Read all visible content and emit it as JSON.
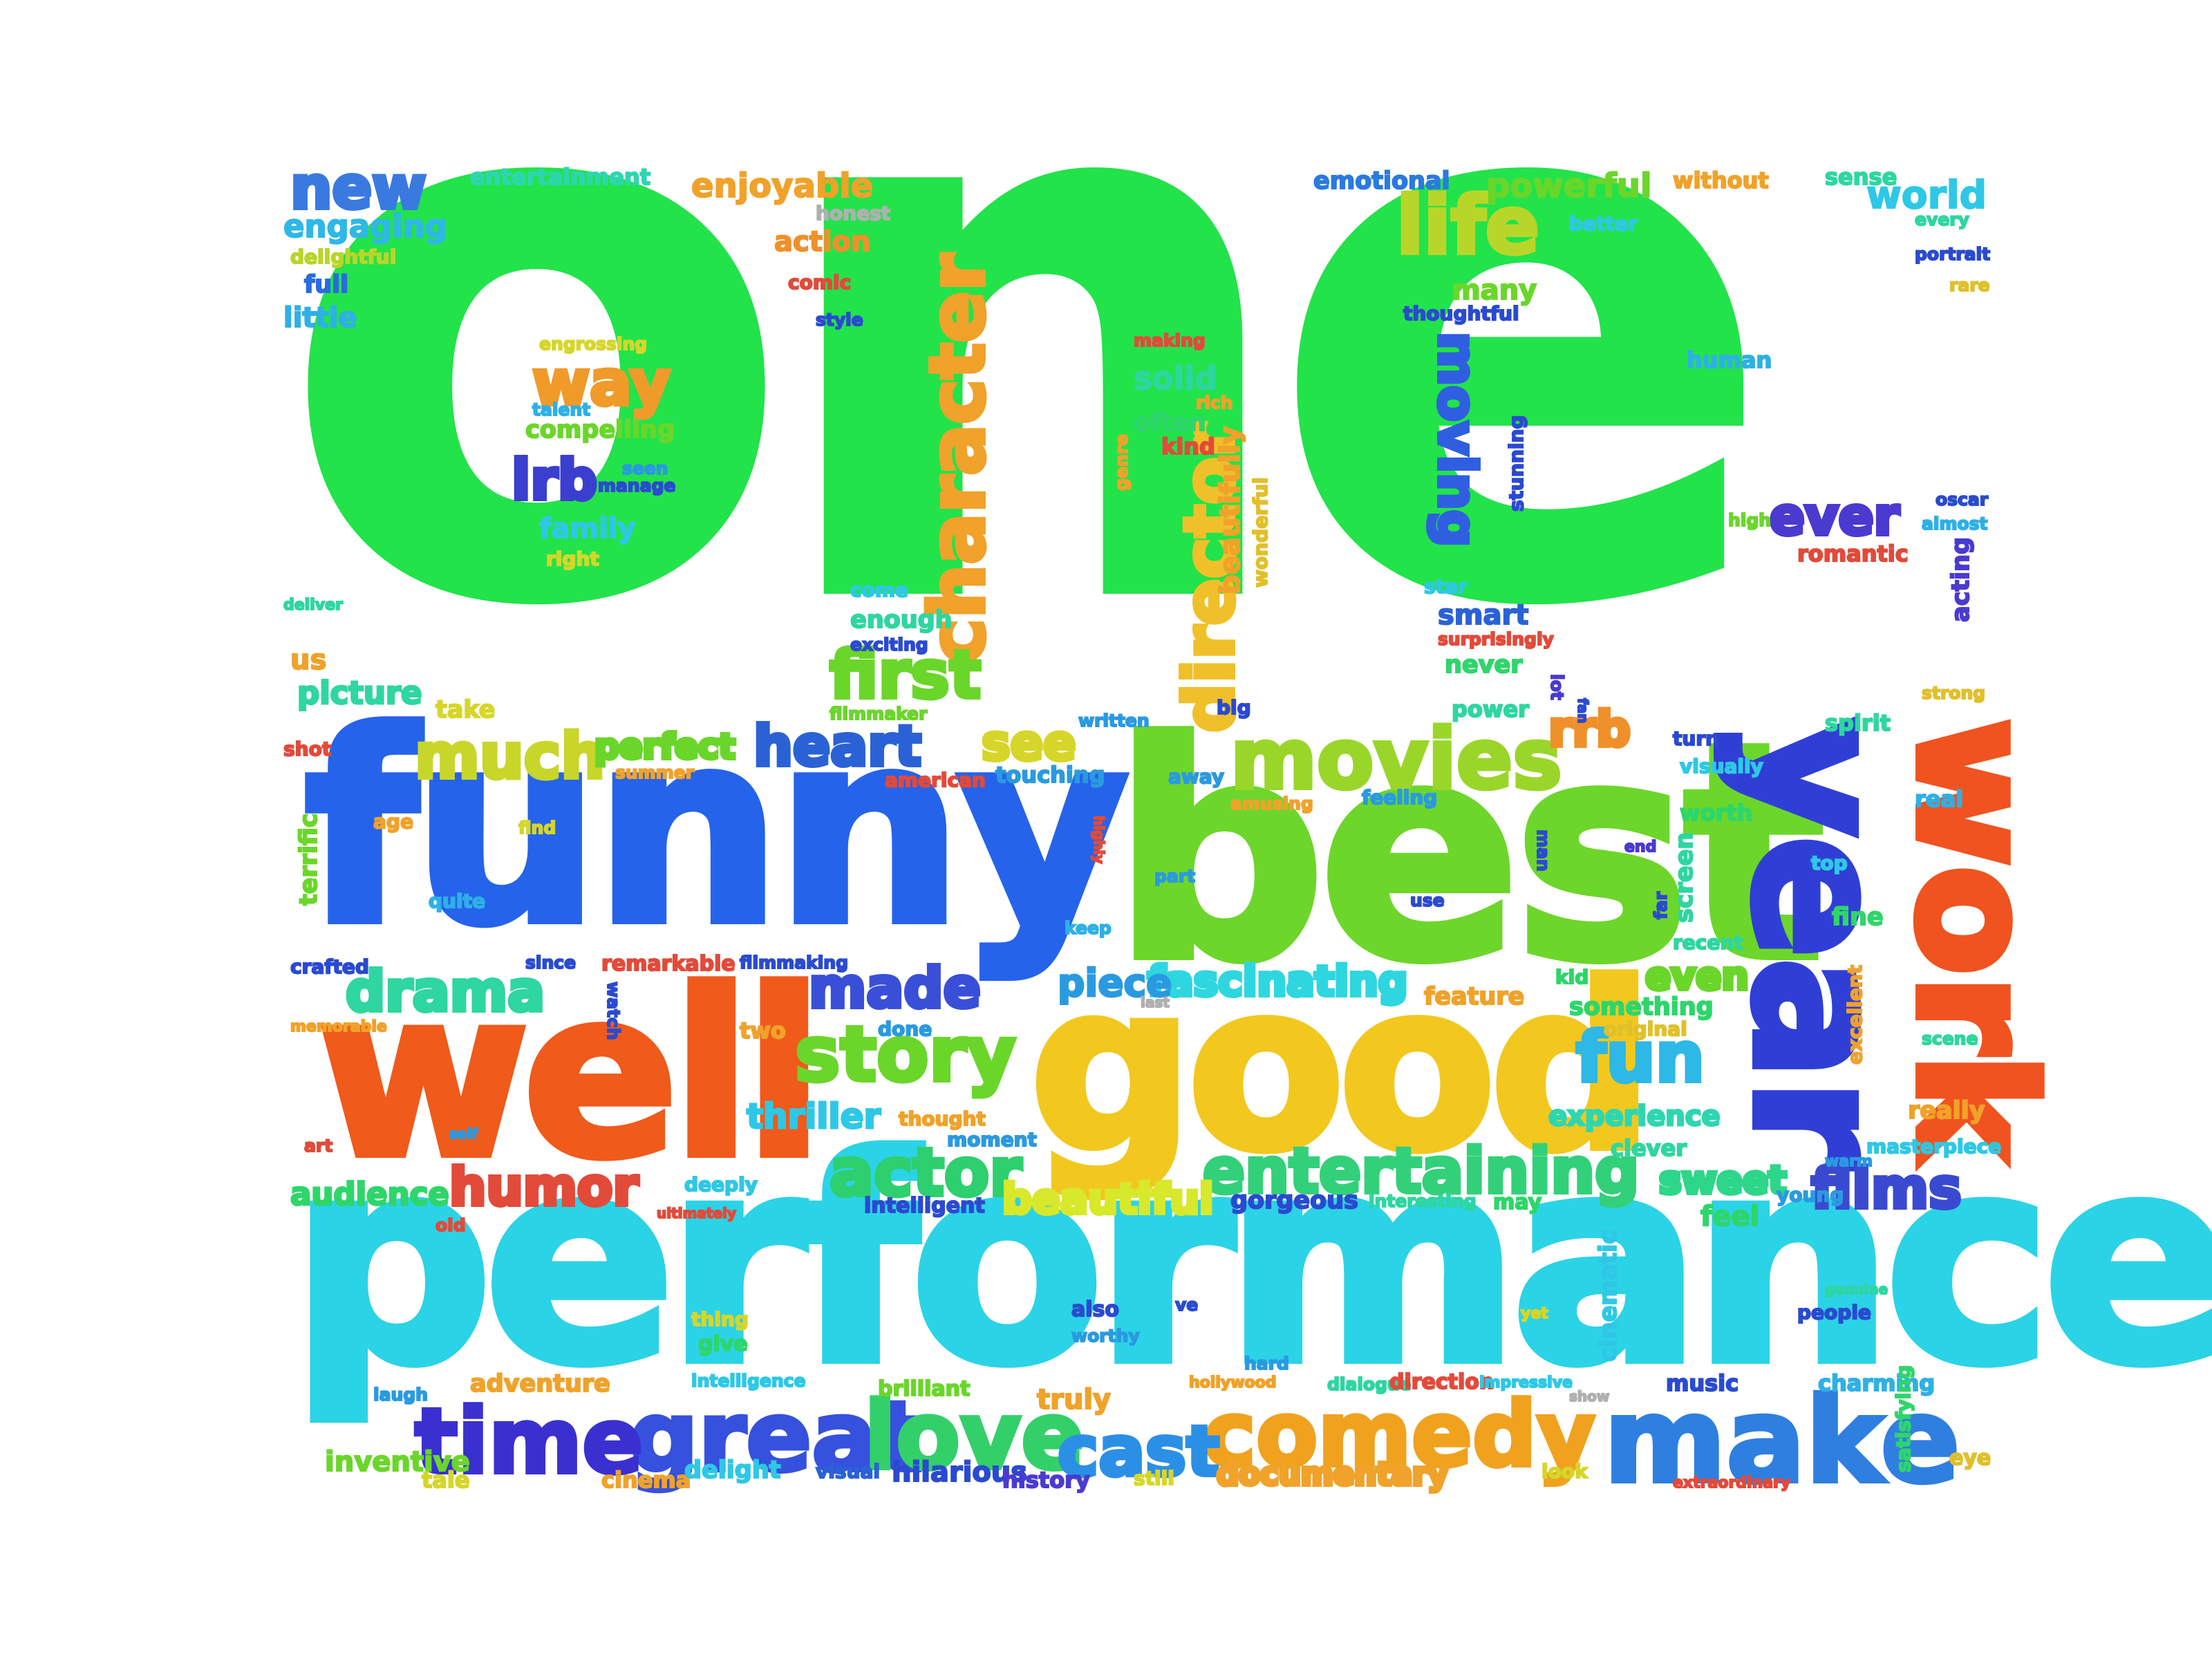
{
  "words": [
    {
      "text": "one",
      "color": "#22e34a"
    },
    {
      "text": "funny",
      "color": "#2563eb"
    },
    {
      "text": "best",
      "color": "#6dd62a"
    },
    {
      "text": "performance",
      "color": "#2bd3e6"
    },
    {
      "text": "good",
      "color": "#f2c81f"
    },
    {
      "text": "well",
      "color": "#f05a1a"
    },
    {
      "text": "year",
      "color": "#2f3fd6"
    },
    {
      "text": "work",
      "color": "#f0531f"
    },
    {
      "text": "make",
      "color": "#2f7fe0"
    },
    {
      "text": "comedy",
      "color": "#f0a21f"
    },
    {
      "text": "great",
      "color": "#3551dd"
    },
    {
      "text": "time",
      "color": "#3a30d0"
    },
    {
      "text": "love",
      "color": "#33d06a"
    },
    {
      "text": "cast",
      "color": "#2c8fe6"
    },
    {
      "text": "movies",
      "color": "#9ad62a"
    },
    {
      "text": "story",
      "color": "#6ad62a"
    },
    {
      "text": "drama",
      "color": "#2ed6a0"
    },
    {
      "text": "humor",
      "color": "#e24a3a"
    },
    {
      "text": "actor",
      "color": "#2ecf6e"
    },
    {
      "text": "entertaining",
      "color": "#33d07a"
    },
    {
      "text": "character",
      "color": "#f0a22a"
    },
    {
      "text": "director",
      "color": "#f0c02a"
    },
    {
      "text": "life",
      "color": "#b8d62a"
    },
    {
      "text": "moving",
      "color": "#2f5fe0"
    },
    {
      "text": "made",
      "color": "#3a4fd8"
    },
    {
      "text": "heart",
      "color": "#2a62d6"
    },
    {
      "text": "much",
      "color": "#c8d62a"
    },
    {
      "text": "fun",
      "color": "#2eb8e6"
    },
    {
      "text": "films",
      "color": "#3a4ad0"
    },
    {
      "text": "first",
      "color": "#6ad62a"
    },
    {
      "text": "see",
      "color": "#d6d62a"
    },
    {
      "text": "way",
      "color": "#f09a2a"
    },
    {
      "text": "new",
      "color": "#3a7ae0"
    },
    {
      "text": "lrb",
      "color": "#3a3fd0"
    },
    {
      "text": "rrb",
      "color": "#f0902a"
    },
    {
      "text": "ever",
      "color": "#4a3ad0"
    },
    {
      "text": "fascinating",
      "color": "#2ed6e0"
    },
    {
      "text": "beautiful",
      "color": "#d8e82a"
    },
    {
      "text": "even",
      "color": "#6ad62a"
    },
    {
      "text": "sweet",
      "color": "#2ed68a"
    },
    {
      "text": "documentary",
      "color": "#f0a22a"
    },
    {
      "text": "perfect",
      "color": "#6ad62a"
    },
    {
      "text": "picture",
      "color": "#2ed6a0"
    },
    {
      "text": "thriller",
      "color": "#2ec8e6"
    },
    {
      "text": "piece",
      "color": "#2a9ae0"
    },
    {
      "text": "audience",
      "color": "#2ed66a"
    },
    {
      "text": "experience",
      "color": "#2ed6b0"
    },
    {
      "text": "entertainment",
      "color": "#2ed6b0"
    },
    {
      "text": "enjoyable",
      "color": "#f0a22a"
    },
    {
      "text": "engaging",
      "color": "#2eb8e6"
    },
    {
      "text": "delightful",
      "color": "#b8d62a"
    },
    {
      "text": "full",
      "color": "#2a6ae0"
    },
    {
      "text": "little",
      "color": "#2eb0e6"
    },
    {
      "text": "action",
      "color": "#f0902a"
    },
    {
      "text": "honest",
      "color": "#b0b0b0"
    },
    {
      "text": "comic",
      "color": "#e24a3a"
    },
    {
      "text": "style",
      "color": "#2a4ad0"
    },
    {
      "text": "emotional",
      "color": "#2a7ae0"
    },
    {
      "text": "powerful",
      "color": "#6ad62a"
    },
    {
      "text": "without",
      "color": "#f0a22a"
    },
    {
      "text": "sense",
      "color": "#2ed6a0"
    },
    {
      "text": "world",
      "color": "#2ec8e6"
    },
    {
      "text": "better",
      "color": "#2ec8e6"
    },
    {
      "text": "every",
      "color": "#2ed6a0"
    },
    {
      "text": "portrait",
      "color": "#2a4ad0"
    },
    {
      "text": "rare",
      "color": "#e0c02a"
    },
    {
      "text": "many",
      "color": "#6ad62a"
    },
    {
      "text": "thoughtful",
      "color": "#2a4ad0"
    },
    {
      "text": "human",
      "color": "#2eb0e6"
    },
    {
      "text": "engrossing",
      "color": "#d6d62a"
    },
    {
      "text": "talent",
      "color": "#2eb0e6"
    },
    {
      "text": "compelling",
      "color": "#6ad62a"
    },
    {
      "text": "seen",
      "color": "#2a9ae0"
    },
    {
      "text": "manage",
      "color": "#2a4ad0"
    },
    {
      "text": "family",
      "color": "#2ec8e6"
    },
    {
      "text": "right",
      "color": "#d6d62a"
    },
    {
      "text": "making",
      "color": "#e24a3a"
    },
    {
      "text": "solid",
      "color": "#2ed6a0"
    },
    {
      "text": "rich",
      "color": "#f0a22a"
    },
    {
      "text": "often",
      "color": "#2ed66a"
    },
    {
      "text": "kind",
      "color": "#e24a3a"
    },
    {
      "text": "genre",
      "color": "#f0a22a"
    },
    {
      "text": "beautifully",
      "color": "#f0a22a"
    },
    {
      "text": "wonderful",
      "color": "#e0c02a"
    },
    {
      "text": "stunning",
      "color": "#2a4ad0"
    },
    {
      "text": "high",
      "color": "#6ad62a"
    },
    {
      "text": "oscar",
      "color": "#2a4ad0"
    },
    {
      "text": "almost",
      "color": "#2eb0e6"
    },
    {
      "text": "romantic",
      "color": "#e24a3a"
    },
    {
      "text": "acting",
      "color": "#4a3ad0"
    },
    {
      "text": "star",
      "color": "#2ec8e6"
    },
    {
      "text": "smart",
      "color": "#2a62d6"
    },
    {
      "text": "surprisingly",
      "color": "#e24a3a"
    },
    {
      "text": "never",
      "color": "#2ed66a"
    },
    {
      "text": "power",
      "color": "#2ed6a0"
    },
    {
      "text": "lot",
      "color": "#4a3ad0"
    },
    {
      "text": "fan",
      "color": "#2a4ad0"
    },
    {
      "text": "come",
      "color": "#2ec8e6"
    },
    {
      "text": "enough",
      "color": "#2ed6a0"
    },
    {
      "text": "exciting",
      "color": "#2a4ad0"
    },
    {
      "text": "us",
      "color": "#f0a22a"
    },
    {
      "text": "deliver",
      "color": "#2ed6a0"
    },
    {
      "text": "take",
      "color": "#d6d62a"
    },
    {
      "text": "filmmaker",
      "color": "#6ad62a"
    },
    {
      "text": "big",
      "color": "#2a4ad0"
    },
    {
      "text": "strong",
      "color": "#e0c02a"
    },
    {
      "text": "spirit",
      "color": "#2ed6a0"
    },
    {
      "text": "shot",
      "color": "#e24a3a"
    },
    {
      "text": "summer",
      "color": "#f0a22a"
    },
    {
      "text": "written",
      "color": "#2a9ae0"
    },
    {
      "text": "american",
      "color": "#e24a3a"
    },
    {
      "text": "touching",
      "color": "#2a9ae0"
    },
    {
      "text": "away",
      "color": "#2a9ae0"
    },
    {
      "text": "amusing",
      "color": "#f0a22a"
    },
    {
      "text": "feeling",
      "color": "#2a9ae0"
    },
    {
      "text": "turn",
      "color": "#2a4ad0"
    },
    {
      "text": "visually",
      "color": "#2ec8e6"
    },
    {
      "text": "real",
      "color": "#2eb0e6"
    },
    {
      "text": "worth",
      "color": "#2ed66a"
    },
    {
      "text": "age",
      "color": "#f0a22a"
    },
    {
      "text": "find",
      "color": "#d6d62a"
    },
    {
      "text": "terrific",
      "color": "#6ad62a"
    },
    {
      "text": "quite",
      "color": "#2eb0e6"
    },
    {
      "text": "highly",
      "color": "#e24a3a"
    },
    {
      "text": "part",
      "color": "#2a9ae0"
    },
    {
      "text": "man",
      "color": "#2a4ad0"
    },
    {
      "text": "end",
      "color": "#4a3ad0"
    },
    {
      "text": "screen",
      "color": "#2ed6a0"
    },
    {
      "text": "far",
      "color": "#2a4ad0"
    },
    {
      "text": "top",
      "color": "#2ec8e6"
    },
    {
      "text": "fine",
      "color": "#2ed66a"
    },
    {
      "text": "keep",
      "color": "#2eb0e6"
    },
    {
      "text": "use",
      "color": "#2a4ad0"
    },
    {
      "text": "recent",
      "color": "#2ed6a0"
    },
    {
      "text": "crafted",
      "color": "#2a4ad0"
    },
    {
      "text": "since",
      "color": "#2a4ad0"
    },
    {
      "text": "remarkable",
      "color": "#e24a3a"
    },
    {
      "text": "filmmaking",
      "color": "#2a4ad0"
    },
    {
      "text": "feature",
      "color": "#f0a22a"
    },
    {
      "text": "kid",
      "color": "#2ed66a"
    },
    {
      "text": "something",
      "color": "#2ed66a"
    },
    {
      "text": "original",
      "color": "#e0c02a"
    },
    {
      "text": "excellent",
      "color": "#f0a22a"
    },
    {
      "text": "last",
      "color": "#b0b0b0"
    },
    {
      "text": "memorable",
      "color": "#f0a22a"
    },
    {
      "text": "watch",
      "color": "#2a4ad0"
    },
    {
      "text": "two",
      "color": "#f0a22a"
    },
    {
      "text": "done",
      "color": "#2a9ae0"
    },
    {
      "text": "scene",
      "color": "#2ed6a0"
    },
    {
      "text": "really",
      "color": "#f0a22a"
    },
    {
      "text": "thought",
      "color": "#f0a22a"
    },
    {
      "text": "moment",
      "color": "#2a9ae0"
    },
    {
      "text": "clever",
      "color": "#2ed6a0"
    },
    {
      "text": "art",
      "color": "#e24a3a"
    },
    {
      "text": "self",
      "color": "#2a9ae0"
    },
    {
      "text": "deeply",
      "color": "#2ec8e6"
    },
    {
      "text": "warm",
      "color": "#2a9ae0"
    },
    {
      "text": "masterpiece",
      "color": "#2ec8e6"
    },
    {
      "text": "young",
      "color": "#2a9ae0"
    },
    {
      "text": "old",
      "color": "#e24a3a"
    },
    {
      "text": "ultimately",
      "color": "#e24a3a"
    },
    {
      "text": "intelligent",
      "color": "#2a4ad0"
    },
    {
      "text": "gorgeous",
      "color": "#2a4ad0"
    },
    {
      "text": "interesting",
      "color": "#2ed6a0"
    },
    {
      "text": "may",
      "color": "#2ed66a"
    },
    {
      "text": "feel",
      "color": "#2ed66a"
    },
    {
      "text": "also",
      "color": "#2a4ad0"
    },
    {
      "text": "ve",
      "color": "#2a4ad0"
    },
    {
      "text": "worthy",
      "color": "#2a9ae0"
    },
    {
      "text": "thing",
      "color": "#d6d62a"
    },
    {
      "text": "give",
      "color": "#2ed66a"
    },
    {
      "text": "genuine",
      "color": "#2ed6a0"
    },
    {
      "text": "people",
      "color": "#2a4ad0"
    },
    {
      "text": "yet",
      "color": "#d6d62a"
    },
    {
      "text": "hard",
      "color": "#2a9ae0"
    },
    {
      "text": "hollywood",
      "color": "#f0a22a"
    },
    {
      "text": "dialogue",
      "color": "#2ed6a0"
    },
    {
      "text": "direction",
      "color": "#e24a3a"
    },
    {
      "text": "impressive",
      "color": "#2ec8e6"
    },
    {
      "text": "show",
      "color": "#b0b0b0"
    },
    {
      "text": "cinematic",
      "color": "#2ec8e6"
    },
    {
      "text": "music",
      "color": "#2a4ad0"
    },
    {
      "text": "charming",
      "color": "#2eb0e6"
    },
    {
      "text": "adventure",
      "color": "#f0a22a"
    },
    {
      "text": "intelligence",
      "color": "#2ec8e6"
    },
    {
      "text": "brilliant",
      "color": "#6ad62a"
    },
    {
      "text": "truly",
      "color": "#f0a22a"
    },
    {
      "text": "laugh",
      "color": "#2a9ae0"
    },
    {
      "text": "inventive",
      "color": "#6ad62a"
    },
    {
      "text": "tale",
      "color": "#d6d62a"
    },
    {
      "text": "cinema",
      "color": "#f0a22a"
    },
    {
      "text": "delight",
      "color": "#2ec8e6"
    },
    {
      "text": "visual",
      "color": "#2a62d6"
    },
    {
      "text": "hilarious",
      "color": "#2a4ad0"
    },
    {
      "text": "history",
      "color": "#4a3ad0"
    },
    {
      "text": "still",
      "color": "#d6d62a"
    },
    {
      "text": "look",
      "color": "#d6d62a"
    },
    {
      "text": "extraordinary",
      "color": "#e24a3a"
    },
    {
      "text": "satisfying",
      "color": "#2ed66a"
    },
    {
      "text": "eye",
      "color": "#e0c02a"
    }
  ]
}
